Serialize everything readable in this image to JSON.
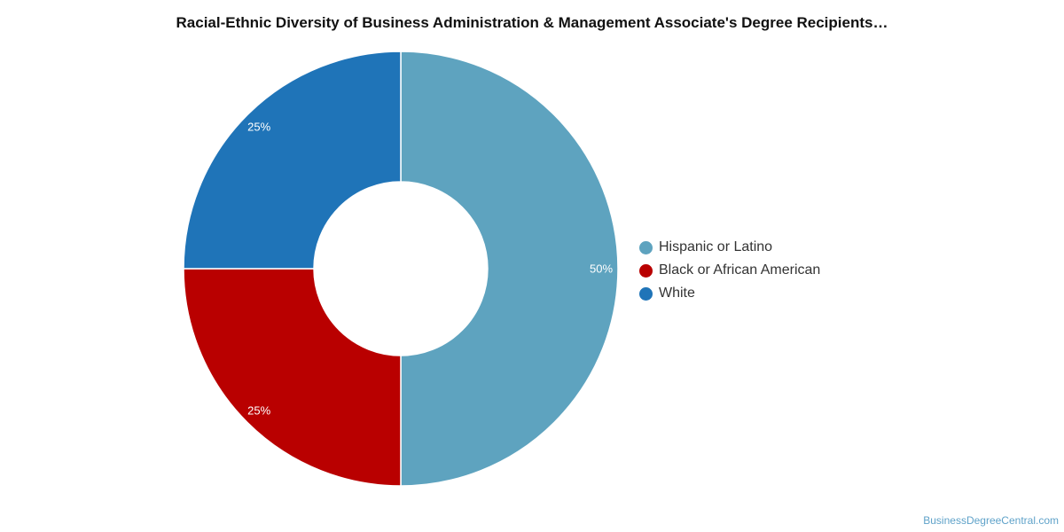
{
  "chart_data": {
    "type": "pie",
    "variant": "donut",
    "title": "Racial-Ethnic Diversity of Business Administration & Management Associate's Degree Recipients…",
    "slices": [
      {
        "label": "Hispanic or Latino",
        "value": 50,
        "value_label": "50%",
        "color": "#5ea3bf"
      },
      {
        "label": "Black or African American",
        "value": 25,
        "value_label": "25%",
        "color": "#b90000"
      },
      {
        "label": "White",
        "value": 25,
        "value_label": "25%",
        "color": "#1f74b8"
      }
    ],
    "legend_position": "right"
  },
  "footer": {
    "source": "BusinessDegreeCentral.com"
  }
}
